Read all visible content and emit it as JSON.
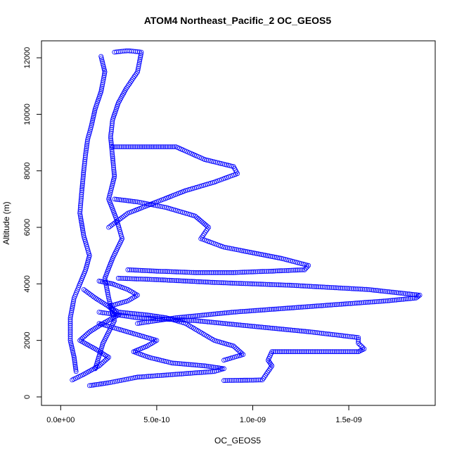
{
  "chart_data": {
    "type": "scatter",
    "title": "ATOM4 Northeast_Pacific_2 OC_GEOS5",
    "xlabel": "OC_GEOS5",
    "ylabel": "Altitude (m)",
    "xlim": [
      -1e-10,
      1.95e-09
    ],
    "ylim": [
      -300,
      12600
    ],
    "x_ticks": [
      {
        "value": 0,
        "label": "0.0e+00"
      },
      {
        "value": 5e-10,
        "label": "5.0e-10"
      },
      {
        "value": 1e-09,
        "label": "1.0e-09"
      },
      {
        "value": 1.5e-09,
        "label": "1.5e-09"
      }
    ],
    "y_ticks": [
      {
        "value": 0,
        "label": "0"
      },
      {
        "value": 2000,
        "label": "2000"
      },
      {
        "value": 4000,
        "label": "4000"
      },
      {
        "value": 6000,
        "label": "6000"
      },
      {
        "value": 8000,
        "label": "8000"
      },
      {
        "value": 10000,
        "label": "10000"
      },
      {
        "value": 12000,
        "label": "12000"
      }
    ],
    "grid": false,
    "legend": "none",
    "marker": "open-circle",
    "color": "#0000ff",
    "series": [
      {
        "x": [
          2.1e-10,
          2.3e-10,
          2.1e-10,
          1.8e-10,
          1.6e-10,
          1.4e-10,
          1.3e-10,
          1.2e-10,
          1.1e-10,
          1e-10,
          1.2e-10,
          1.5e-10,
          1.3e-10,
          1e-10,
          7e-11,
          5e-11,
          5e-11,
          7e-11,
          8e-11
        ],
        "y": [
          12050,
          11500,
          10800,
          10200,
          9600,
          9100,
          8600,
          8000,
          7300,
          6500,
          5700,
          5000,
          4500,
          4000,
          3500,
          2800,
          2000,
          1400,
          900
        ]
      },
      {
        "x": [
          2.8e-10,
          3.5e-10,
          4.2e-10,
          4e-10,
          3.4e-10,
          3e-10,
          2.7e-10,
          2.6e-10,
          2.7e-10,
          2.8e-10,
          2.5e-10,
          2.9e-10,
          3.2e-10,
          2.7e-10,
          2.3e-10,
          2.5e-10,
          2.8e-10,
          2.2e-10,
          1.8e-10
        ],
        "y": [
          12200,
          12250,
          12200,
          11500,
          10900,
          10400,
          9800,
          9200,
          8500,
          7800,
          7000,
          6300,
          5600,
          4900,
          4200,
          3500,
          2700,
          1900,
          1000
        ]
      },
      {
        "x": [
          2.7e-10,
          4e-10,
          5e-10,
          6e-10,
          7.5e-10,
          9e-10,
          9.2e-10,
          8e-10,
          6.5e-10,
          5e-10,
          3.5e-10,
          2.5e-10
        ],
        "y": [
          8850,
          8850,
          8850,
          8850,
          8400,
          8150,
          7900,
          7600,
          7300,
          6900,
          6500,
          6000
        ]
      },
      {
        "x": [
          2.8e-10,
          4e-10,
          5.5e-10,
          7e-10,
          7.7e-10,
          7.3e-10,
          8.5e-10,
          1e-09,
          1.15e-09,
          1.29e-09,
          1.27e-09,
          1.1e-09,
          9e-10,
          7e-10,
          5e-10,
          3.5e-10
        ],
        "y": [
          7000,
          6900,
          6700,
          6400,
          6000,
          5600,
          5300,
          5100,
          4900,
          4650,
          4500,
          4450,
          4400,
          4400,
          4450,
          4500
        ]
      },
      {
        "x": [
          3e-10,
          5e-10,
          8e-10,
          1.2e-09,
          1.6e-09,
          1.87e-09,
          1.85e-09,
          1.7e-09,
          1.5e-09,
          1.2e-09,
          9e-10,
          6e-10,
          4e-10
        ],
        "y": [
          4200,
          4150,
          4050,
          3950,
          3800,
          3600,
          3500,
          3400,
          3300,
          3150,
          3000,
          2800,
          2600
        ]
      },
      {
        "x": [
          2e-10,
          4e-10,
          7e-10,
          1e-09,
          1.3e-09,
          1.55e-09,
          1.55e-09,
          1.58e-09,
          1.55e-09,
          1.3e-09,
          1.1e-09,
          1.08e-09,
          1.1e-09,
          1.05e-09,
          8.5e-10
        ],
        "y": [
          3000,
          2800,
          2700,
          2500,
          2300,
          2100,
          1900,
          1700,
          1600,
          1600,
          1600,
          1300,
          1100,
          600,
          580
        ]
      },
      {
        "x": [
          2e-10,
          2.7e-10,
          3.5e-10,
          4e-10,
          3.5e-10,
          2.5e-10,
          3e-10,
          4.5e-10,
          5.5e-10,
          6e-10,
          6.5e-10,
          7e-10,
          7.5e-10,
          8e-10,
          9e-10,
          9.5e-10,
          8.5e-10
        ],
        "y": [
          4100,
          4000,
          3800,
          3600,
          3400,
          3200,
          3000,
          2900,
          2800,
          2700,
          2600,
          2400,
          2200,
          2000,
          1800,
          1500,
          1300
        ]
      },
      {
        "x": [
          2e-10,
          3e-10,
          4e-10,
          5e-10,
          4.5e-10,
          3.8e-10,
          4.6e-10,
          5.8e-10,
          7.5e-10,
          8.5e-10,
          8e-10,
          6e-10,
          4e-10,
          2.5e-10,
          1.5e-10
        ],
        "y": [
          2600,
          2400,
          2200,
          2000,
          1800,
          1600,
          1400,
          1200,
          1100,
          1000,
          900,
          800,
          700,
          500,
          400
        ]
      },
      {
        "x": [
          1.2e-10,
          1.8e-10,
          2.5e-10,
          3e-10,
          2.2e-10,
          1.5e-10,
          1e-10,
          1.8e-10,
          2.5e-10,
          2e-10,
          1.2e-10,
          6e-11
        ],
        "y": [
          3800,
          3500,
          3200,
          2900,
          2600,
          2300,
          2000,
          1700,
          1400,
          1100,
          800,
          600
        ]
      }
    ]
  }
}
